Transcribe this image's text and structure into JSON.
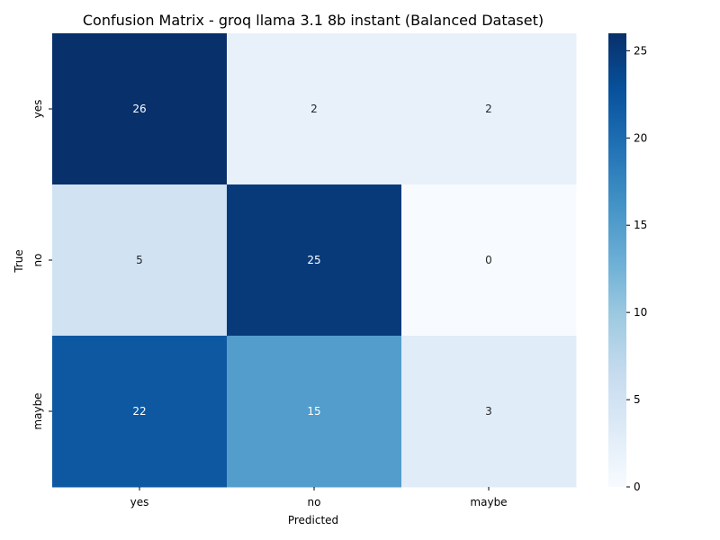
{
  "chart_data": {
    "type": "heatmap",
    "title": "Confusion Matrix - groq llama 3.1 8b instant (Balanced Dataset)",
    "xlabel": "Predicted",
    "ylabel": "True",
    "x_categories": [
      "yes",
      "no",
      "maybe"
    ],
    "y_categories": [
      "yes",
      "no",
      "maybe"
    ],
    "values": [
      [
        26,
        2,
        2
      ],
      [
        5,
        25,
        0
      ],
      [
        22,
        15,
        3
      ]
    ],
    "colorbar": {
      "min": 0,
      "max": 26,
      "ticks": [
        0,
        5,
        10,
        15,
        20,
        25
      ],
      "colormap": "Blues"
    }
  }
}
